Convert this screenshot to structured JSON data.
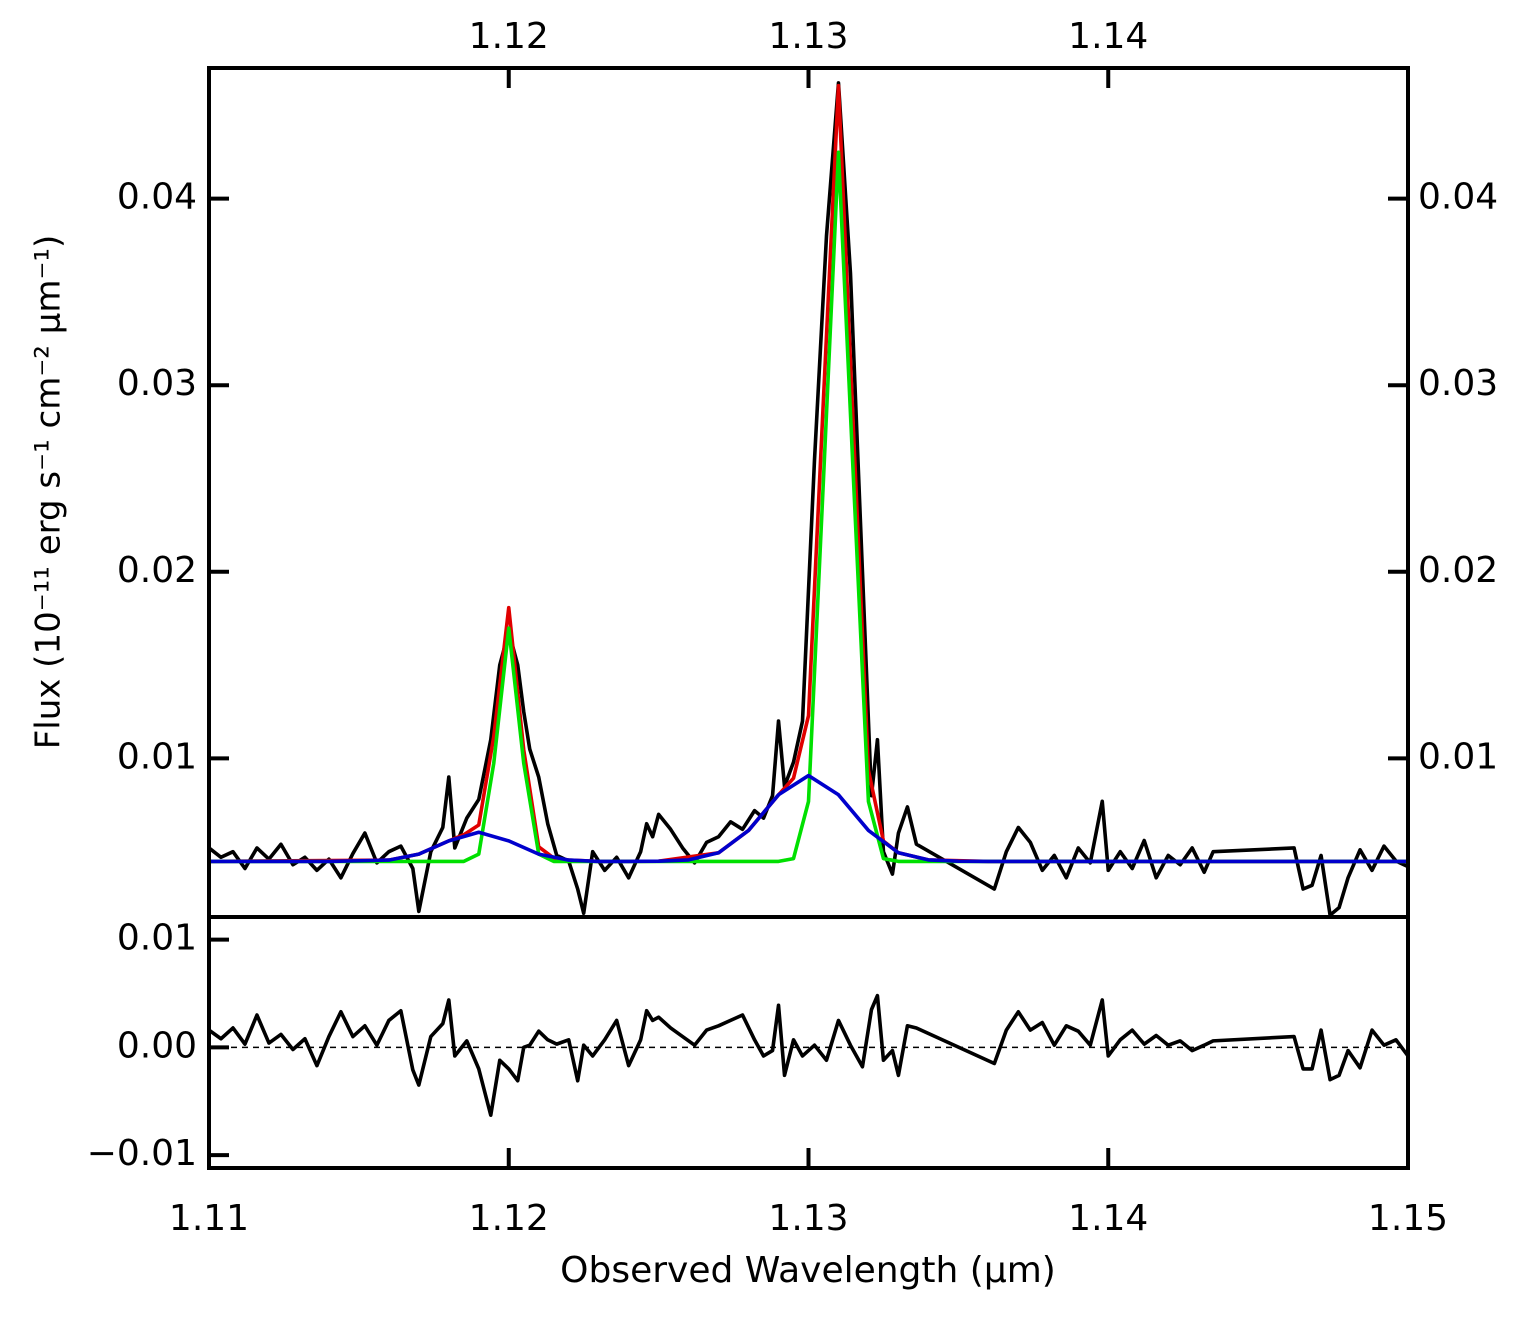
{
  "chart_data": [
    {
      "type": "line",
      "ylabel": "Flux (10⁻¹¹ erg s⁻¹ cm⁻² μm⁻¹)",
      "xlim": [
        1.11,
        1.15
      ],
      "x2ticks": [
        1.12,
        1.13,
        1.14
      ],
      "ylim": [
        0.0015,
        0.047
      ],
      "yticks": [
        0.01,
        0.02,
        0.03,
        0.04
      ],
      "y2lim": [
        0.0015,
        0.047
      ],
      "y2ticks": [
        0.01,
        0.02,
        0.03,
        0.04
      ],
      "series": [
        {
          "color": "#000000",
          "x": [
            1.11,
            1.1104,
            1.1108,
            1.1112,
            1.1116,
            1.112,
            1.1124,
            1.1128,
            1.1132,
            1.1136,
            1.114,
            1.1144,
            1.1148,
            1.1152,
            1.1156,
            1.116,
            1.1164,
            1.1168,
            1.117,
            1.1174,
            1.1178,
            1.118,
            1.1182,
            1.1186,
            1.119,
            1.1194,
            1.1197,
            1.12,
            1.1203,
            1.1205,
            1.1207,
            1.121,
            1.1213,
            1.1216,
            1.122,
            1.1223,
            1.1225,
            1.1228,
            1.1232,
            1.1236,
            1.124,
            1.1244,
            1.1246,
            1.1248,
            1.125,
            1.1254,
            1.1258,
            1.1262,
            1.1266,
            1.127,
            1.1274,
            1.1278,
            1.1282,
            1.1285,
            1.1288,
            1.129,
            1.1292,
            1.1295,
            1.1298,
            1.1302,
            1.1306,
            1.131,
            1.1314,
            1.1318,
            1.1321,
            1.1323,
            1.1325,
            1.1328,
            1.133,
            1.1333,
            1.1336,
            1.1362,
            1.1366,
            1.137,
            1.1374,
            1.1378,
            1.1382,
            1.1386,
            1.139,
            1.1394,
            1.1398,
            1.14,
            1.1404,
            1.1408,
            1.1412,
            1.1416,
            1.142,
            1.1424,
            1.1428,
            1.1432,
            1.1435,
            1.1462,
            1.1465,
            1.1468,
            1.1471,
            1.1474,
            1.1477,
            1.148,
            1.1484,
            1.1488,
            1.1492,
            1.1496,
            1.15
          ],
          "values": [
            0.0052,
            0.0047,
            0.005,
            0.0041,
            0.0052,
            0.0046,
            0.0054,
            0.0043,
            0.0047,
            0.004,
            0.0046,
            0.0036,
            0.0049,
            0.006,
            0.0044,
            0.005,
            0.0053,
            0.0041,
            0.0018,
            0.005,
            0.0063,
            0.009,
            0.0052,
            0.0068,
            0.0078,
            0.011,
            0.015,
            0.0168,
            0.015,
            0.0125,
            0.0105,
            0.009,
            0.0065,
            0.0048,
            0.0045,
            0.003,
            0.0017,
            0.005,
            0.004,
            0.0047,
            0.0036,
            0.005,
            0.0065,
            0.0058,
            0.007,
            0.0062,
            0.0052,
            0.0044,
            0.0055,
            0.0058,
            0.0066,
            0.0062,
            0.0072,
            0.0068,
            0.008,
            0.012,
            0.0085,
            0.0098,
            0.012,
            0.026,
            0.038,
            0.0462,
            0.036,
            0.02,
            0.008,
            0.011,
            0.005,
            0.0038,
            0.006,
            0.0074,
            0.0054,
            0.003,
            0.005,
            0.0063,
            0.0055,
            0.004,
            0.0048,
            0.0036,
            0.0052,
            0.0044,
            0.0077,
            0.004,
            0.005,
            0.0041,
            0.0056,
            0.0036,
            0.0048,
            0.0043,
            0.0052,
            0.0039,
            0.005,
            0.0052,
            0.003,
            0.0032,
            0.0048,
            0.0016,
            0.002,
            0.0036,
            0.0051,
            0.004,
            0.0053,
            0.0045,
            0.0042
          ]
        },
        {
          "color": "#e00000",
          "x": [
            1.11,
            1.116,
            1.117,
            1.118,
            1.1185,
            1.119,
            1.1195,
            1.12,
            1.1205,
            1.121,
            1.1215,
            1.122,
            1.123,
            1.125,
            1.127,
            1.128,
            1.129,
            1.1295,
            1.13,
            1.1305,
            1.131,
            1.1315,
            1.132,
            1.1325,
            1.133,
            1.134,
            1.136,
            1.15
          ],
          "values": [
            0.00448,
            0.00455,
            0.00487,
            0.00558,
            0.00591,
            0.00643,
            0.01117,
            0.01808,
            0.01045,
            0.00526,
            0.00466,
            0.00455,
            0.00448,
            0.00449,
            0.00494,
            0.00614,
            0.00805,
            0.00894,
            0.01229,
            0.02929,
            0.04605,
            0.02757,
            0.00935,
            0.00557,
            0.00494,
            0.00456,
            0.00448,
            0.00448
          ]
        },
        {
          "color": "#00e000",
          "x": [
            1.11,
            1.1185,
            1.119,
            1.1195,
            1.12,
            1.1205,
            1.121,
            1.1215,
            1.129,
            1.1295,
            1.13,
            1.1305,
            1.131,
            1.1315,
            1.132,
            1.1325,
            1.133,
            1.15
          ],
          "values": [
            0.00448,
            0.00448,
            0.00487,
            0.00974,
            0.01698,
            0.00974,
            0.00487,
            0.00448,
            0.00448,
            0.00463,
            0.00769,
            0.02498,
            0.04248,
            0.02498,
            0.00769,
            0.00463,
            0.00448,
            0.00448
          ]
        },
        {
          "color": "#0000cc",
          "x": [
            1.11,
            1.114,
            1.116,
            1.117,
            1.118,
            1.119,
            1.12,
            1.121,
            1.122,
            1.123,
            1.124,
            1.125,
            1.126,
            1.127,
            1.128,
            1.129,
            1.13,
            1.131,
            1.132,
            1.133,
            1.134,
            1.135,
            1.136,
            1.15
          ],
          "values": [
            0.00448,
            0.00448,
            0.00455,
            0.00487,
            0.00558,
            0.00604,
            0.00558,
            0.00487,
            0.00455,
            0.00448,
            0.00448,
            0.00449,
            0.00456,
            0.00494,
            0.00614,
            0.00805,
            0.00908,
            0.00805,
            0.00614,
            0.00494,
            0.00456,
            0.00449,
            0.00448,
            0.00448
          ]
        }
      ]
    },
    {
      "type": "line",
      "xlabel": "Observed Wavelength (μm)",
      "xlim": [
        1.11,
        1.15
      ],
      "xticks": [
        1.11,
        1.12,
        1.13,
        1.14,
        1.15
      ],
      "ylim": [
        -0.0112,
        0.0121
      ],
      "yticks": [
        {
          "value": -0.01,
          "label": "−0.01"
        },
        {
          "value": 0,
          "label": "0.00"
        },
        0.01
      ],
      "hline": 0,
      "series": [
        {
          "color": "#000000",
          "x": [
            1.11,
            1.1104,
            1.1108,
            1.1112,
            1.1116,
            1.112,
            1.1124,
            1.1128,
            1.1132,
            1.1136,
            1.114,
            1.1144,
            1.1148,
            1.1152,
            1.1156,
            1.116,
            1.1164,
            1.1168,
            1.117,
            1.1174,
            1.1178,
            1.118,
            1.1182,
            1.1186,
            1.119,
            1.1194,
            1.1197,
            1.12,
            1.1203,
            1.1205,
            1.1207,
            1.121,
            1.1213,
            1.1216,
            1.122,
            1.1223,
            1.1225,
            1.1228,
            1.1232,
            1.1236,
            1.124,
            1.1244,
            1.1246,
            1.1248,
            1.125,
            1.1254,
            1.1258,
            1.1262,
            1.1266,
            1.127,
            1.1274,
            1.1278,
            1.1282,
            1.1285,
            1.1288,
            1.129,
            1.1292,
            1.1295,
            1.1298,
            1.1302,
            1.1306,
            1.131,
            1.1314,
            1.1318,
            1.1321,
            1.1323,
            1.1325,
            1.1328,
            1.133,
            1.1333,
            1.1336,
            1.1362,
            1.1366,
            1.137,
            1.1374,
            1.1378,
            1.1382,
            1.1386,
            1.139,
            1.1394,
            1.1398,
            1.14,
            1.1404,
            1.1408,
            1.1412,
            1.1416,
            1.142,
            1.1424,
            1.1428,
            1.1432,
            1.1435,
            1.1462,
            1.1465,
            1.1468,
            1.1471,
            1.1474,
            1.1477,
            1.148,
            1.1484,
            1.1488,
            1.1492,
            1.1496,
            1.15
          ],
          "values": [
            0.0016,
            0.0008,
            0.0018,
            0.0003,
            0.003,
            0.0004,
            0.0012,
            -0.0002,
            0.0008,
            -0.0017,
            0.001,
            0.0033,
            0.001,
            0.002,
            0.0002,
            0.0025,
            0.0034,
            -0.0021,
            -0.0035,
            0.001,
            0.0022,
            0.0044,
            -0.0008,
            0.0006,
            -0.002,
            -0.0063,
            -0.0012,
            -0.002,
            -0.0031,
            0.0,
            0.0002,
            0.0015,
            0.0007,
            0.0003,
            0.0007,
            -0.0031,
            0.0002,
            -0.0008,
            0.0007,
            0.0025,
            -0.0017,
            0.0007,
            0.0034,
            0.0025,
            0.0028,
            0.0018,
            0.001,
            0.0002,
            0.0016,
            0.002,
            0.0025,
            0.003,
            0.0007,
            -0.0008,
            -0.0003,
            0.0039,
            -0.0026,
            0.0007,
            -0.0008,
            0.0002,
            -0.0012,
            0.0025,
            0.0002,
            -0.0018,
            0.0035,
            0.0048,
            -0.0012,
            -0.0003,
            -0.0026,
            0.002,
            0.0018,
            -0.0015,
            0.0016,
            0.0033,
            0.0016,
            0.0023,
            0.0002,
            0.002,
            0.0015,
            0.0002,
            0.0044,
            -0.0008,
            0.0007,
            0.0016,
            0.0003,
            0.0011,
            0.0002,
            0.0006,
            -0.0003,
            0.0002,
            0.0006,
            0.001,
            -0.002,
            -0.002,
            0.0016,
            -0.003,
            -0.0026,
            -0.0003,
            -0.0019,
            0.0016,
            0.0002,
            0.0007,
            -0.0008
          ]
        }
      ]
    }
  ]
}
